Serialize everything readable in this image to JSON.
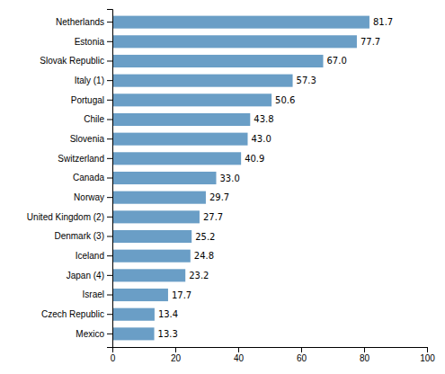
{
  "chart_data": {
    "type": "bar",
    "orientation": "horizontal",
    "categories": [
      "Mexico",
      "Czech Republic",
      "Israel",
      "Japan (4)",
      "Iceland",
      "Denmark (3)",
      "United Kingdom (2)",
      "Norway",
      "Canada",
      "Switzerland",
      "Slovenia",
      "Chile",
      "Portugal",
      "Italy (1)",
      "Slovak Republic",
      "Estonia",
      "Netherlands"
    ],
    "values": [
      13.3,
      13.4,
      17.7,
      23.2,
      24.8,
      25.2,
      27.7,
      29.7,
      33.0,
      40.9,
      43.0,
      43.8,
      50.6,
      57.3,
      67.0,
      77.7,
      81.7
    ],
    "value_labels": [
      "13.3",
      "13.4",
      "17.7",
      "23.2",
      "24.8",
      "25.2",
      "27.7",
      "29.7",
      "33.0",
      "40.9",
      "43.0",
      "43.8",
      "50.6",
      "57.3",
      "67.0",
      "77.7",
      "81.7"
    ],
    "color": "#6a9ec6",
    "xlim": [
      0,
      100
    ],
    "xticks": [
      0,
      20,
      40,
      60,
      80,
      100
    ],
    "grid": false,
    "data_labels": true
  }
}
